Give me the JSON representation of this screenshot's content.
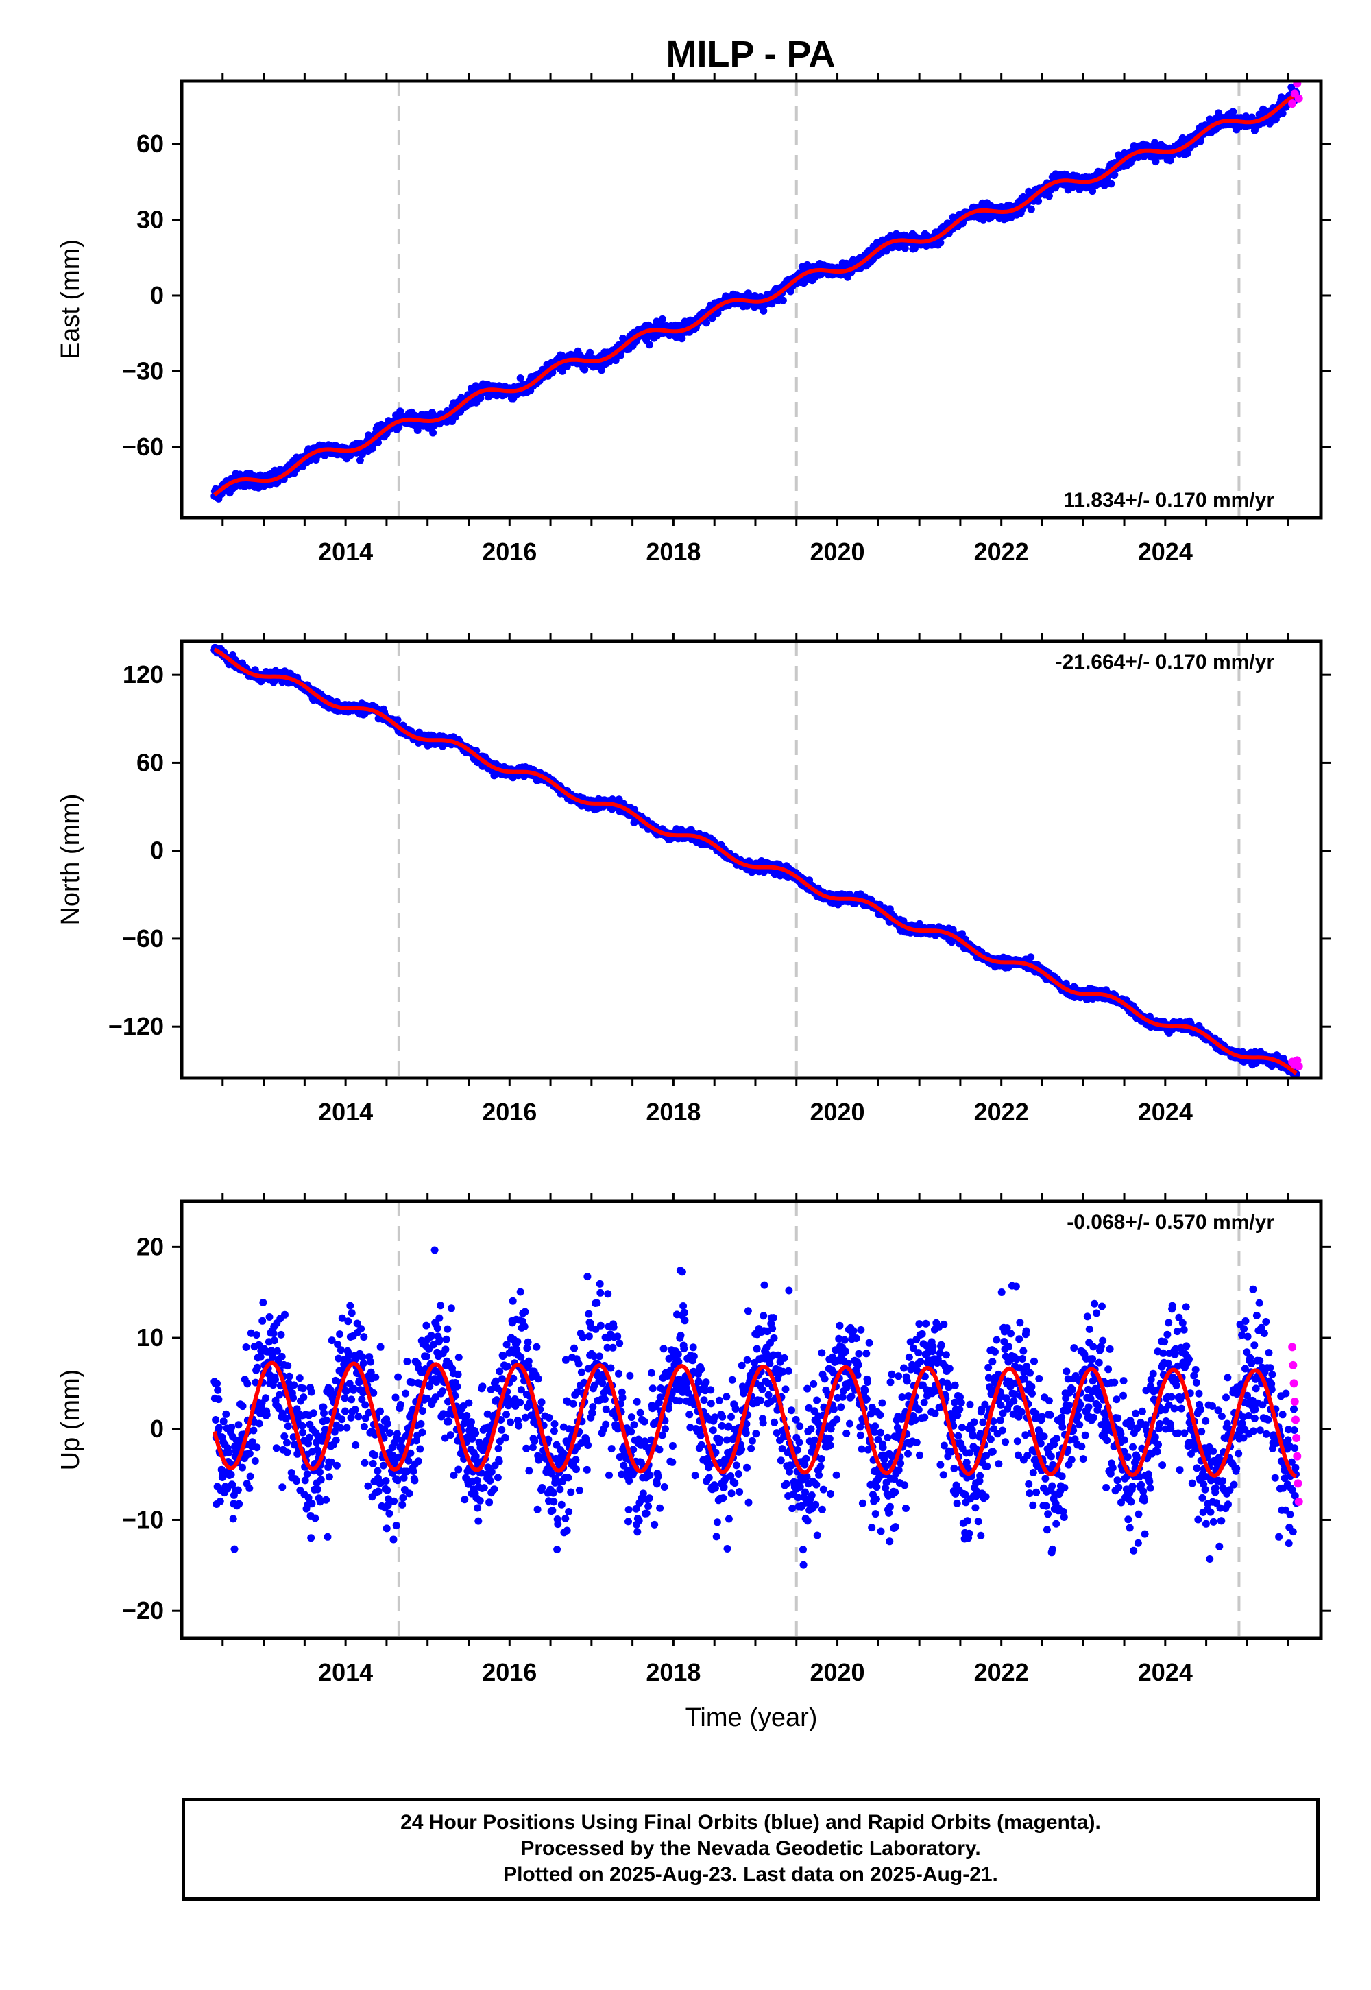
{
  "title": "MILP - PA",
  "caption": [
    "24 Hour Positions Using Final Orbits (blue) and Rapid Orbits (magenta).",
    "Processed by the Nevada Geodetic Laboratory.",
    "Plotted on 2025-Aug-23. Last data on 2025-Aug-21."
  ],
  "colors": {
    "final": "#0000ff",
    "rapid": "#ff00ff",
    "model": "#ff0000",
    "events": "#c8c8c8"
  },
  "chart_data": [
    {
      "type": "scatter",
      "ylabel": "East (mm)",
      "xlabel": "",
      "xlim": [
        2012.0,
        2025.9
      ],
      "ylim": [
        -88,
        85
      ],
      "yticks": [
        -60,
        -30,
        0,
        30,
        60
      ],
      "xticks": [
        2014,
        2016,
        2018,
        2020,
        2022,
        2024
      ],
      "annotation": "11.834+/- 0.170 mm/yr",
      "annotation_position": "bottom-right",
      "event_lines": [
        2014.65,
        2019.5,
        2024.9
      ],
      "model": {
        "start": 2012.4,
        "end": 2025.6,
        "start_value": -79,
        "rate": 11.834,
        "annual_amplitude": 2.5,
        "phase": 0.0
      },
      "noise": 1.4,
      "rapid": {
        "x": [
          2025.55,
          2025.58,
          2025.61,
          2025.63
        ],
        "y": [
          76,
          80,
          84,
          78
        ]
      }
    },
    {
      "type": "scatter",
      "ylabel": "North (mm)",
      "xlabel": "",
      "xlim": [
        2012.0,
        2025.9
      ],
      "ylim": [
        -155,
        143
      ],
      "yticks": [
        -120,
        -60,
        0,
        60,
        120
      ],
      "xticks": [
        2014,
        2016,
        2018,
        2020,
        2022,
        2024
      ],
      "annotation": "-21.664+/- 0.170 mm/yr",
      "annotation_position": "top-right",
      "event_lines": [
        2014.65,
        2019.5,
        2024.9
      ],
      "model": {
        "start": 2012.4,
        "end": 2025.6,
        "start_value": 134,
        "rate": -21.664,
        "annual_amplitude": 3.5,
        "phase": 0.3
      },
      "noise": 1.6,
      "rapid": {
        "x": [
          2025.55,
          2025.58,
          2025.61,
          2025.63
        ],
        "y": [
          -144,
          -146,
          -143,
          -147
        ]
      }
    },
    {
      "type": "scatter",
      "ylabel": "Up (mm)",
      "xlabel": "Time (year)",
      "xlim": [
        2012.0,
        2025.9
      ],
      "ylim": [
        -23,
        25
      ],
      "yticks": [
        -20,
        -10,
        0,
        10,
        20
      ],
      "xticks": [
        2014,
        2016,
        2018,
        2020,
        2022,
        2024
      ],
      "annotation": "-0.068+/- 0.570 mm/yr",
      "annotation_position": "top-right",
      "event_lines": [
        2014.65,
        2019.5,
        2024.9
      ],
      "model": {
        "start": 2012.4,
        "end": 2025.6,
        "start_value": 1.5,
        "rate": -0.068,
        "annual_amplitude": 5.8,
        "phase": 0.55
      },
      "noise": 3.8,
      "rapid": {
        "x": [
          2025.55,
          2025.56,
          2025.57,
          2025.58,
          2025.59,
          2025.6,
          2025.61,
          2025.62,
          2025.63
        ],
        "y": [
          9,
          7,
          5,
          3,
          1,
          -1,
          -3,
          -6,
          -8
        ]
      }
    }
  ]
}
